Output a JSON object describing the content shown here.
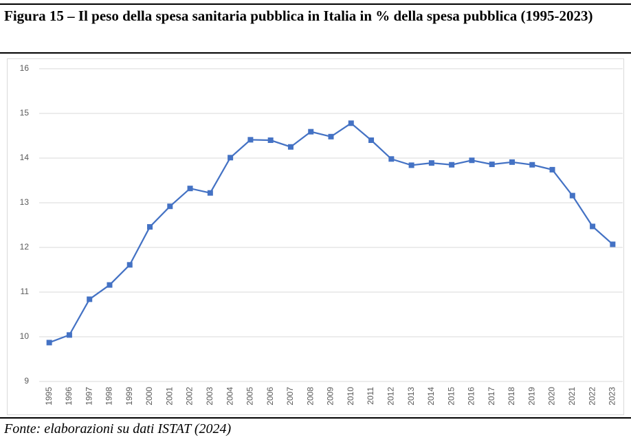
{
  "chart_data": {
    "type": "line",
    "title": "Figura 15 – Il peso della spesa sanitaria pubblica in Italia in % della spesa pubblica (1995-2023)",
    "source": "Fonte: elaborazioni su dati ISTAT (2024)",
    "categories": [
      "1995",
      "1996",
      "1997",
      "1998",
      "1999",
      "2000",
      "2001",
      "2002",
      "2003",
      "2004",
      "2005",
      "2006",
      "2007",
      "2008",
      "2009",
      "2010",
      "2011",
      "2012",
      "2013",
      "2014",
      "2015",
      "2016",
      "2017",
      "2018",
      "2019",
      "2020",
      "2021",
      "2022",
      "2023"
    ],
    "values": [
      9.87,
      10.04,
      10.84,
      11.16,
      11.61,
      12.46,
      12.92,
      13.32,
      13.22,
      14.01,
      14.41,
      14.4,
      14.25,
      14.59,
      14.48,
      14.78,
      14.4,
      13.98,
      13.84,
      13.89,
      13.85,
      13.95,
      13.86,
      13.91,
      13.85,
      13.74,
      13.16,
      12.47,
      12.07
    ],
    "color": "#4472c4",
    "ylim": [
      9,
      16
    ],
    "yticks": [
      9,
      10,
      11,
      12,
      13,
      14,
      15,
      16
    ],
    "grid": true
  }
}
